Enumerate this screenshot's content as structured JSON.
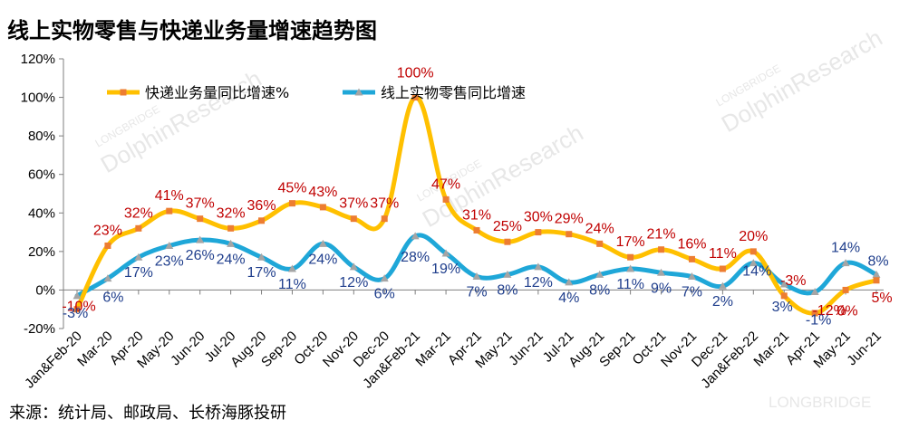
{
  "title": "线上实物零售与快递业务量增速趋势图",
  "source": "来源：统计局、邮政局、长桥海豚投研",
  "watermark": {
    "brand": "LONGBRIDGE",
    "sub": "DolphinResearch"
  },
  "colors": {
    "express": "#FFC000",
    "online": "#1FA7D8",
    "express_label": "#C00000",
    "online_label": "#1F3E8C",
    "axis": "#7f7f7f",
    "grid": "#d9d9d9"
  },
  "chart_data": {
    "type": "line",
    "title": "线上实物零售与快递业务量增速趋势图",
    "ylim": [
      -20,
      120
    ],
    "yticks": [
      -20,
      0,
      20,
      40,
      60,
      80,
      100,
      120
    ],
    "ytick_labels": [
      "-20%",
      "0%",
      "20%",
      "40%",
      "60%",
      "80%",
      "100%",
      "120%"
    ],
    "grid": false,
    "legend": "top-left",
    "categories": [
      "Jan&Feb-20",
      "Mar-20",
      "Apr-20",
      "May-20",
      "Jun-20",
      "Jul-20",
      "Aug-20",
      "Sep-20",
      "Oct-20",
      "Nov-20",
      "Dec-20",
      "Jan&Feb-21",
      "Mar-21",
      "Apr-21",
      "May-21",
      "Jun-21",
      "Jul-21",
      "Aug-21",
      "Sep-21",
      "Oct-21",
      "Nov-21",
      "Dec-21",
      "Jan&Feb-22",
      "Mar-21",
      "Apr-21",
      "May-21",
      "Jun-21"
    ],
    "series": [
      {
        "name": "快递业务量同比增速%",
        "marker": "square",
        "values": [
          -10,
          23,
          32,
          41,
          37,
          32,
          36,
          45,
          43,
          37,
          37,
          100,
          47,
          31,
          25,
          30,
          29,
          24,
          17,
          21,
          16,
          11,
          20,
          -3,
          -12,
          0,
          5
        ],
        "labels": [
          "-10%",
          "23%",
          "32%",
          "41%",
          "37%",
          "32%",
          "36%",
          "45%",
          "43%",
          "37%",
          "37%",
          "100%",
          "47%",
          "31%",
          "25%",
          "30%",
          "29%",
          "24%",
          "17%",
          "21%",
          "16%",
          "11%",
          "20%",
          "-3%",
          "-12%",
          "0%",
          "5%"
        ]
      },
      {
        "name": "线上实物零售同比增速",
        "marker": "triangle",
        "values": [
          -3,
          6,
          17,
          23,
          26,
          24,
          17,
          11,
          24,
          12,
          6,
          28,
          19,
          7,
          8,
          12,
          4,
          8,
          11,
          9,
          7,
          2,
          14,
          3,
          -1,
          14,
          8
        ],
        "labels": [
          "-3%",
          "6%",
          "17%",
          "23%",
          "26%",
          "24%",
          "17%",
          "11%",
          "24%",
          "12%",
          "6%",
          "28%",
          "19%",
          "7%",
          "8%",
          "12%",
          "4%",
          "8%",
          "11%",
          "9%",
          "7%",
          "2%",
          "14%",
          "3%",
          "-1%",
          "14%",
          "8%"
        ]
      }
    ]
  }
}
